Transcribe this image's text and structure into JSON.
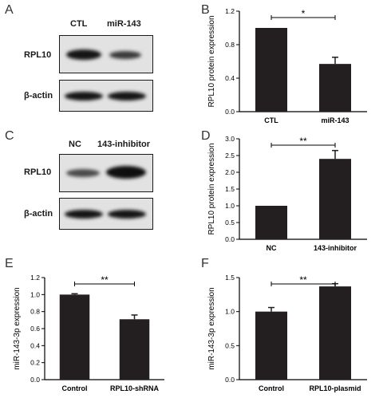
{
  "panels": {
    "A": {
      "letter": "A",
      "lanes": [
        "CTL",
        "miR-143"
      ],
      "rows": [
        "RPL10",
        "β-actin"
      ]
    },
    "B": {
      "letter": "B"
    },
    "C": {
      "letter": "C",
      "lanes": [
        "NC",
        "143-inhibitor"
      ],
      "rows": [
        "RPL10",
        "β-actin"
      ]
    },
    "D": {
      "letter": "D"
    },
    "E": {
      "letter": "E"
    },
    "F": {
      "letter": "F"
    }
  },
  "colors": {
    "bar": "#231f20",
    "blot_bg": "#e2e2e2",
    "band": "#151515"
  },
  "blot_intensity": {
    "A": {
      "RPL10": [
        0.9,
        0.6
      ],
      "β-actin": [
        0.9,
        0.9
      ]
    },
    "C": {
      "RPL10": [
        0.5,
        1.0
      ],
      "β-actin": [
        0.9,
        0.9
      ]
    }
  },
  "chart_data": [
    {
      "panel": "B",
      "type": "bar",
      "categories": [
        "CTL",
        "miR-143"
      ],
      "values": [
        1.0,
        0.57
      ],
      "errors": [
        0,
        0.08
      ],
      "ylabel": "RPL10 protein expression",
      "ylim": [
        0,
        1.2
      ],
      "yticks": [
        "0.0",
        "0.4",
        "0.8",
        "1.2"
      ],
      "significance": "*"
    },
    {
      "panel": "D",
      "type": "bar",
      "categories": [
        "NC",
        "143-inhibitor"
      ],
      "values": [
        1.0,
        2.4
      ],
      "errors": [
        0,
        0.25
      ],
      "ylabel": "RPL10 protein expression",
      "ylim": [
        0,
        3.0
      ],
      "yticks": [
        "0.0",
        "0.5",
        "1.0",
        "1.5",
        "2.0",
        "2.5",
        "3.0"
      ],
      "significance": "**"
    },
    {
      "panel": "E",
      "type": "bar",
      "categories": [
        "Control",
        "RPL10-shRNA"
      ],
      "values": [
        1.0,
        0.71
      ],
      "errors": [
        0.01,
        0.05
      ],
      "ylabel": "miR-143-3p expression",
      "ylim": [
        0,
        1.2
      ],
      "yticks": [
        "0.0",
        "0.2",
        "0.4",
        "0.6",
        "0.8",
        "1.0",
        "1.2"
      ],
      "significance": "**"
    },
    {
      "panel": "F",
      "type": "bar",
      "categories": [
        "Control",
        "RPL10-plasmid"
      ],
      "values": [
        1.0,
        1.37
      ],
      "errors": [
        0.06,
        0.04
      ],
      "ylabel": "miR-143-3p expression",
      "ylim": [
        0,
        1.5
      ],
      "yticks": [
        "0.0",
        "0.5",
        "1.0",
        "1.5"
      ],
      "significance": "**"
    }
  ]
}
